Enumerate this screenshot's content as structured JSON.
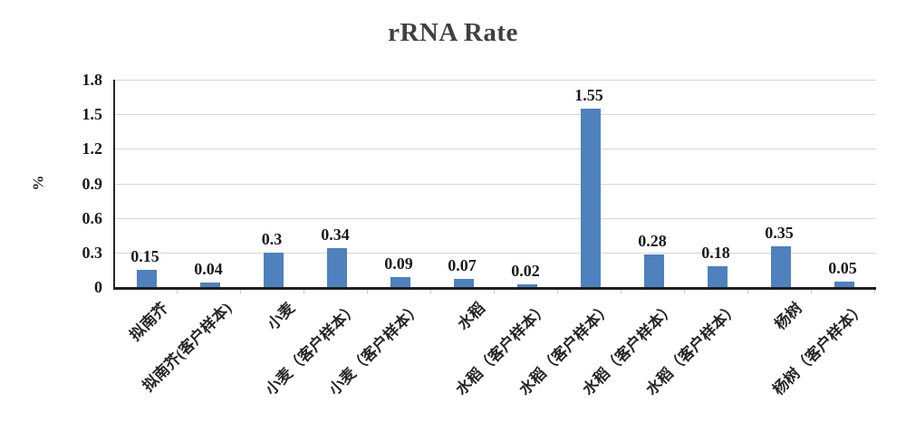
{
  "chart_data": {
    "type": "bar",
    "title": "rRNA Rate",
    "ylabel": "%",
    "xlabel": "",
    "categories": [
      "拟南芥",
      "拟南芥(客户样本)",
      "小麦",
      "小麦（客户样本）",
      "小麦（客户样本）",
      "水稻",
      "水稻（客户样本）",
      "水稻（客户样本）",
      "水稻（客户样本）",
      "水稻（客户样本）",
      "杨树",
      "杨树（客户样本）"
    ],
    "values": [
      0.15,
      0.04,
      0.3,
      0.34,
      0.09,
      0.07,
      0.02,
      1.55,
      0.28,
      0.18,
      0.35,
      0.05
    ],
    "value_labels": [
      "0.15",
      "0.04",
      "0.3",
      "0.34",
      "0.09",
      "0.07",
      "0.02",
      "1.55",
      "0.28",
      "0.18",
      "0.35",
      "0.05"
    ],
    "ylim": [
      0,
      1.8
    ],
    "yticks": [
      "0",
      "0.3",
      "0.6",
      "0.9",
      "1.2",
      "1.5",
      "1.8"
    ],
    "grid": "horizontal-gridlines-on",
    "legend": "none",
    "colors": {
      "bar": "#4e81bd",
      "title_text": "#404040",
      "value_text": "#1a1a1a",
      "axis": "#1f1f1f",
      "gridline": "#d6d6d6",
      "boundary_tick": "#c9c9c9",
      "background": "#ffffff"
    }
  }
}
